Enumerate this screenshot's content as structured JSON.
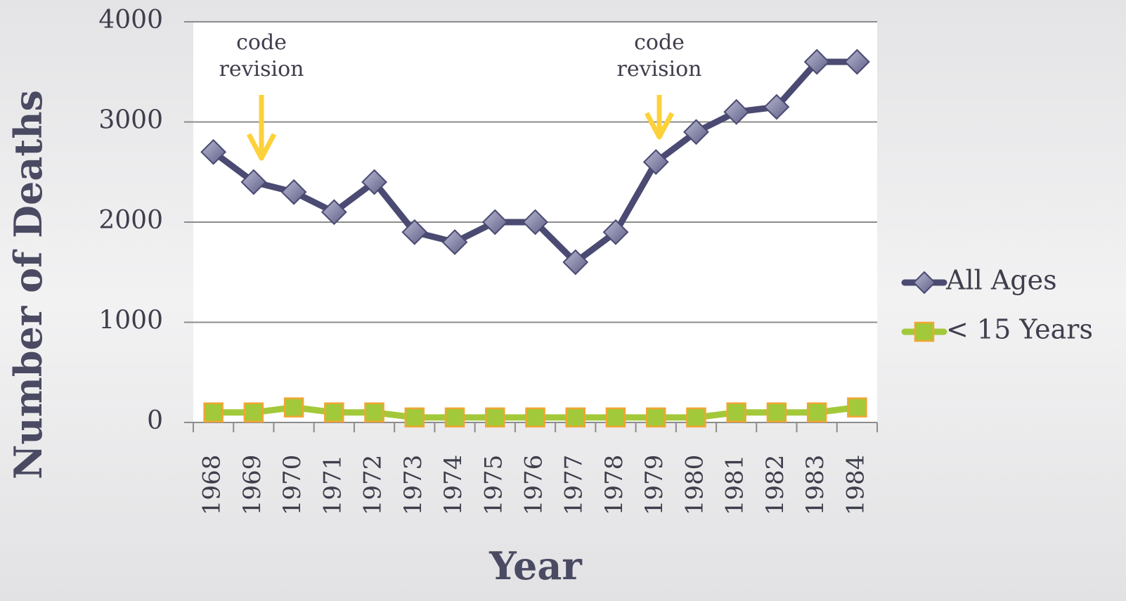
{
  "chart_data": {
    "type": "line",
    "x_label": "Year",
    "y_label": "Number of Deaths",
    "categories": [
      "1968",
      "1969",
      "1970",
      "1971",
      "1972",
      "1973",
      "1974",
      "1975",
      "1976",
      "1977",
      "1978",
      "1979",
      "1980",
      "1981",
      "1982",
      "1983",
      "1984"
    ],
    "series": [
      {
        "name": "All Ages",
        "color": "#4a4a72",
        "marker": "diamond",
        "values": [
          2700,
          2400,
          2300,
          2100,
          2400,
          1900,
          1800,
          2000,
          2000,
          1600,
          1900,
          2600,
          2900,
          3100,
          3150,
          3600,
          3600
        ]
      },
      {
        "name": "< 15 Years",
        "color": "#a2c93a",
        "marker": "square",
        "values": [
          100,
          100,
          150,
          100,
          100,
          50,
          50,
          50,
          50,
          50,
          50,
          50,
          50,
          100,
          100,
          100,
          150
        ]
      }
    ],
    "annotations": [
      "code revision",
      "code revision"
    ],
    "ylim": [
      0,
      4000
    ],
    "yticks": [
      0,
      1000,
      2000,
      3000,
      4000
    ],
    "grid": true,
    "legend": "right"
  }
}
